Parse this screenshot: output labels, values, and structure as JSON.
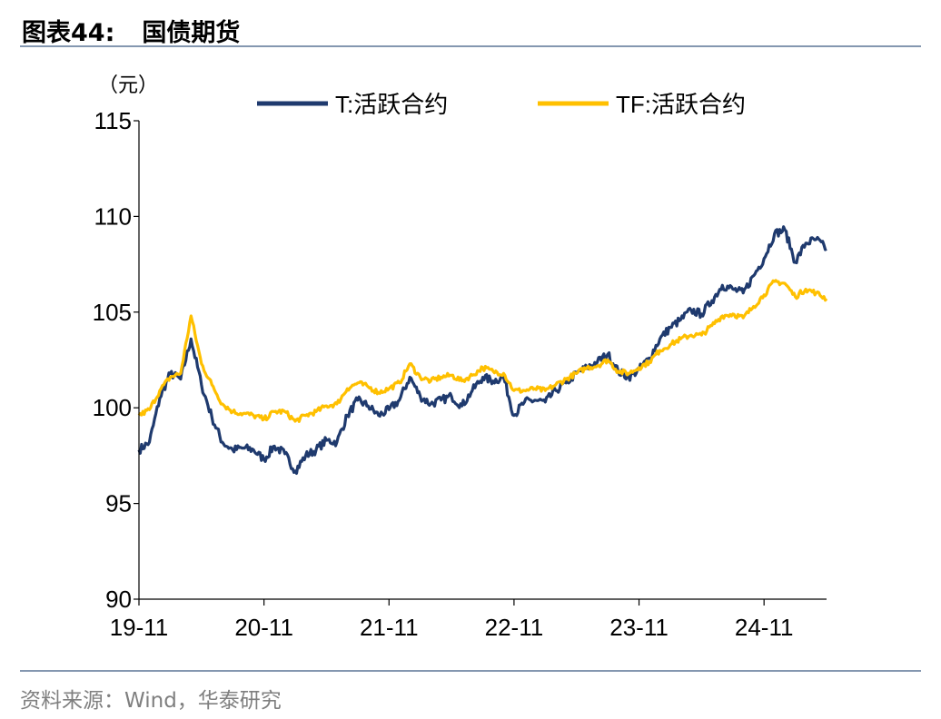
{
  "figure": {
    "label": "图表44:",
    "title": "国债期货",
    "source": "资料来源：Wind，华泰研究"
  },
  "chart_data": {
    "type": "line",
    "unit_label": "（元）",
    "ylim": [
      90,
      115
    ],
    "yticks": [
      "90",
      "95",
      "100",
      "105",
      "110",
      "115"
    ],
    "xticks": [
      "19-11",
      "20-11",
      "21-11",
      "22-11",
      "23-11",
      "24-11"
    ],
    "x_range": [
      "2019-11",
      "2025-05"
    ],
    "legend_position": "top",
    "grid": false,
    "colors": {
      "T": "#1F3A6E",
      "TF": "#FFC000",
      "axis": "#000000"
    },
    "series": [
      {
        "name": "T:活跃合约",
        "color": "#1F3A6E",
        "points": [
          [
            "2019-11",
            97.8
          ],
          [
            "2019-12",
            98.2
          ],
          [
            "2020-01",
            100.5
          ],
          [
            "2020-02",
            101.8
          ],
          [
            "2020-03",
            101.5
          ],
          [
            "2020-04",
            103.6
          ],
          [
            "2020-05",
            101.2
          ],
          [
            "2020-06",
            99.5
          ],
          [
            "2020-07",
            98.2
          ],
          [
            "2020-08",
            97.8
          ],
          [
            "2020-09",
            97.9
          ],
          [
            "2020-10",
            97.8
          ],
          [
            "2020-11",
            97.3
          ],
          [
            "2020-12",
            98.0
          ],
          [
            "2021-01",
            97.6
          ],
          [
            "2021-02",
            96.7
          ],
          [
            "2021-03",
            97.5
          ],
          [
            "2021-04",
            97.8
          ],
          [
            "2021-05",
            98.3
          ],
          [
            "2021-06",
            98.2
          ],
          [
            "2021-07",
            99.6
          ],
          [
            "2021-08",
            100.4
          ],
          [
            "2021-09",
            100.1
          ],
          [
            "2021-10",
            99.6
          ],
          [
            "2021-11",
            99.9
          ],
          [
            "2021-12",
            100.4
          ],
          [
            "2022-01",
            101.6
          ],
          [
            "2022-02",
            100.6
          ],
          [
            "2022-03",
            100.2
          ],
          [
            "2022-04",
            100.4
          ],
          [
            "2022-05",
            100.6
          ],
          [
            "2022-06",
            100.1
          ],
          [
            "2022-07",
            100.9
          ],
          [
            "2022-08",
            101.6
          ],
          [
            "2022-09",
            101.4
          ],
          [
            "2022-10",
            101.6
          ],
          [
            "2022-11",
            99.6
          ],
          [
            "2022-12",
            100.3
          ],
          [
            "2023-01",
            100.4
          ],
          [
            "2023-02",
            100.3
          ],
          [
            "2023-03",
            100.9
          ],
          [
            "2023-04",
            101.3
          ],
          [
            "2023-05",
            101.8
          ],
          [
            "2023-06",
            102.1
          ],
          [
            "2023-07",
            102.4
          ],
          [
            "2023-08",
            102.8
          ],
          [
            "2023-09",
            101.9
          ],
          [
            "2023-10",
            101.6
          ],
          [
            "2023-11",
            102.0
          ],
          [
            "2023-12",
            102.6
          ],
          [
            "2024-01",
            103.6
          ],
          [
            "2024-02",
            104.2
          ],
          [
            "2024-03",
            104.6
          ],
          [
            "2024-04",
            105.1
          ],
          [
            "2024-05",
            104.9
          ],
          [
            "2024-06",
            105.6
          ],
          [
            "2024-07",
            106.4
          ],
          [
            "2024-08",
            106.2
          ],
          [
            "2024-09",
            106.0
          ],
          [
            "2024-10",
            106.9
          ],
          [
            "2024-11",
            107.8
          ],
          [
            "2024-12",
            109.1
          ],
          [
            "2025-01",
            109.3
          ],
          [
            "2025-02",
            107.6
          ],
          [
            "2025-03",
            108.6
          ],
          [
            "2025-04",
            108.8
          ],
          [
            "2025-05",
            108.3
          ]
        ]
      },
      {
        "name": "TF:活跃合约",
        "color": "#FFC000",
        "points": [
          [
            "2019-11",
            99.6
          ],
          [
            "2019-12",
            99.9
          ],
          [
            "2020-01",
            100.9
          ],
          [
            "2020-02",
            101.6
          ],
          [
            "2020-03",
            101.8
          ],
          [
            "2020-04",
            104.8
          ],
          [
            "2020-05",
            102.3
          ],
          [
            "2020-06",
            101.2
          ],
          [
            "2020-07",
            100.2
          ],
          [
            "2020-08",
            99.8
          ],
          [
            "2020-09",
            99.7
          ],
          [
            "2020-10",
            99.6
          ],
          [
            "2020-11",
            99.4
          ],
          [
            "2020-12",
            99.8
          ],
          [
            "2021-01",
            99.8
          ],
          [
            "2021-02",
            99.3
          ],
          [
            "2021-03",
            99.6
          ],
          [
            "2021-04",
            99.8
          ],
          [
            "2021-05",
            100.1
          ],
          [
            "2021-06",
            100.2
          ],
          [
            "2021-07",
            101.0
          ],
          [
            "2021-08",
            101.3
          ],
          [
            "2021-09",
            101.1
          ],
          [
            "2021-10",
            100.8
          ],
          [
            "2021-11",
            101.0
          ],
          [
            "2021-12",
            101.3
          ],
          [
            "2022-01",
            102.3
          ],
          [
            "2022-02",
            101.6
          ],
          [
            "2022-03",
            101.4
          ],
          [
            "2022-04",
            101.6
          ],
          [
            "2022-05",
            101.7
          ],
          [
            "2022-06",
            101.4
          ],
          [
            "2022-07",
            101.7
          ],
          [
            "2022-08",
            102.1
          ],
          [
            "2022-09",
            101.9
          ],
          [
            "2022-10",
            101.8
          ],
          [
            "2022-11",
            100.9
          ],
          [
            "2022-12",
            100.9
          ],
          [
            "2023-01",
            101.0
          ],
          [
            "2023-02",
            100.9
          ],
          [
            "2023-03",
            101.2
          ],
          [
            "2023-04",
            101.5
          ],
          [
            "2023-05",
            101.8
          ],
          [
            "2023-06",
            102.1
          ],
          [
            "2023-07",
            102.2
          ],
          [
            "2023-08",
            102.5
          ],
          [
            "2023-09",
            101.9
          ],
          [
            "2023-10",
            101.8
          ],
          [
            "2023-11",
            102.1
          ],
          [
            "2023-12",
            102.4
          ],
          [
            "2024-01",
            103.0
          ],
          [
            "2024-02",
            103.3
          ],
          [
            "2024-03",
            103.6
          ],
          [
            "2024-04",
            103.8
          ],
          [
            "2024-05",
            103.8
          ],
          [
            "2024-06",
            104.3
          ],
          [
            "2024-07",
            104.8
          ],
          [
            "2024-08",
            104.9
          ],
          [
            "2024-09",
            104.7
          ],
          [
            "2024-10",
            105.3
          ],
          [
            "2024-11",
            105.9
          ],
          [
            "2024-12",
            106.6
          ],
          [
            "2025-01",
            106.5
          ],
          [
            "2025-02",
            105.8
          ],
          [
            "2025-03",
            106.2
          ],
          [
            "2025-04",
            106.0
          ],
          [
            "2025-05",
            105.7
          ]
        ]
      }
    ]
  }
}
